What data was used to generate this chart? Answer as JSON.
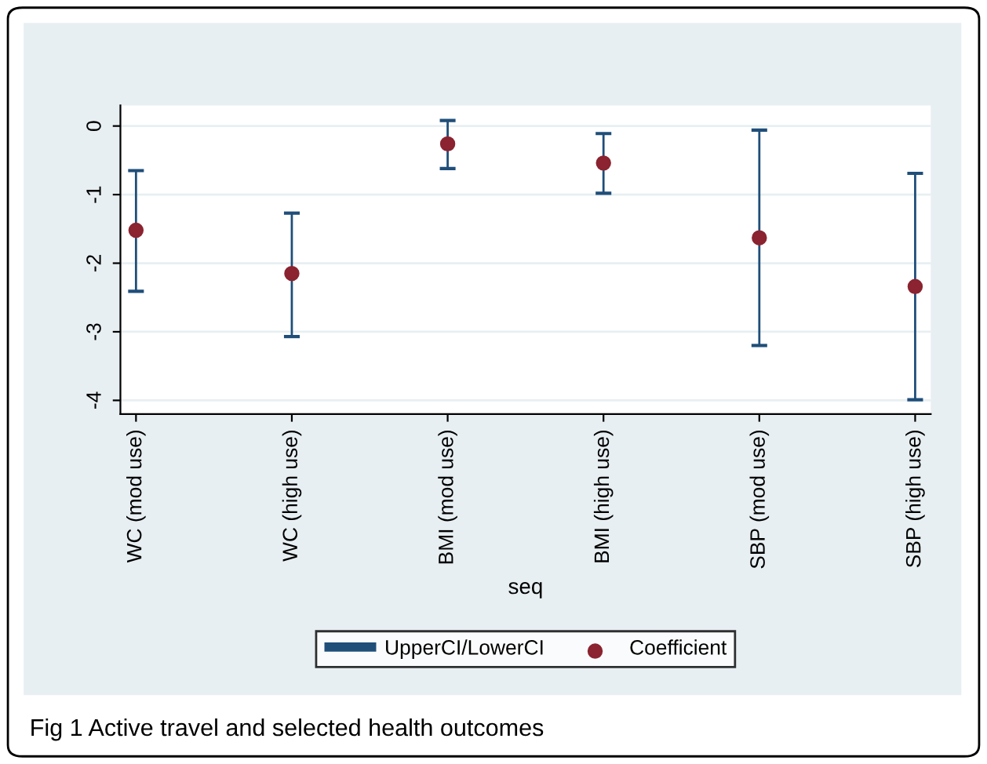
{
  "chart_data": {
    "type": "scatter",
    "xlabel": "seq",
    "categories": [
      "WC (mod use)",
      "WC (high use)",
      "BMI (mod use)",
      "BMI (high use)",
      "SBP (mod use)",
      "SBP (high use)"
    ],
    "series": [
      {
        "name": "UpperCI/LowerCI",
        "type": "bar",
        "color": "#1f4e79",
        "base": [
          -2.41,
          -3.07,
          -0.62,
          -0.98,
          -3.2,
          -3.99
        ],
        "values": [
          1.76,
          1.8,
          0.7,
          0.87,
          3.14,
          3.3
        ]
      },
      {
        "name": "Coefficient",
        "color": "#8b2330",
        "values": [
          -1.52,
          -2.15,
          -0.26,
          -0.54,
          -1.63,
          -2.34
        ]
      }
    ],
    "ylim": [
      -4.2,
      0.3
    ],
    "yticks": [
      0,
      -1,
      -2,
      -3,
      -4
    ],
    "grid": "y",
    "legend": "bottom",
    "marker": "circle",
    "annotations": [
      "Fig 1 Active travel and selected health outcomes"
    ]
  }
}
